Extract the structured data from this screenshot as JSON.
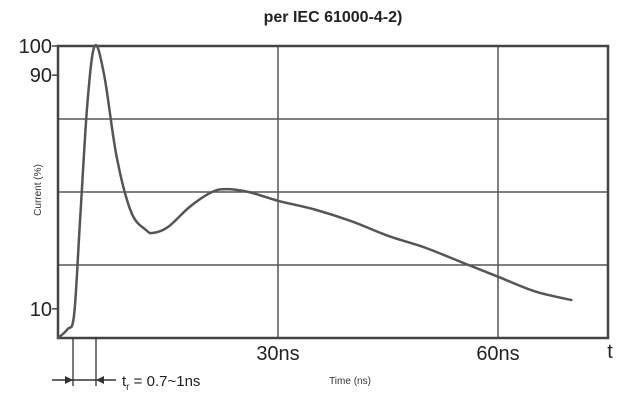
{
  "chart_data": {
    "type": "line",
    "title": "per IEC 61000-4-2)",
    "xlabel": "Time (ns)",
    "ylabel": "Current (%)",
    "x_axis_symbol": "t",
    "annotation": "t",
    "annotation_subscript": "r",
    "annotation_value": " = 0.7~1ns",
    "xlim": [
      0,
      75
    ],
    "ylim": [
      0,
      100
    ],
    "x_ticks": [
      {
        "value": 30,
        "label": "30ns"
      },
      {
        "value": 60,
        "label": "60ns"
      }
    ],
    "y_ticks": [
      {
        "value": 100,
        "label": "100"
      },
      {
        "value": 90,
        "label": "90"
      },
      {
        "value": 10,
        "label": "10"
      }
    ],
    "grid": true,
    "series": [
      {
        "color": "#555555",
        "points": [
          [
            0,
            0
          ],
          [
            1.3,
            3
          ],
          [
            2.2,
            8
          ],
          [
            3.0,
            40
          ],
          [
            4.0,
            80
          ],
          [
            5.0,
            100
          ],
          [
            6.3,
            90
          ],
          [
            8.0,
            62
          ],
          [
            10.0,
            43
          ],
          [
            12.0,
            37
          ],
          [
            13.0,
            36
          ],
          [
            15.0,
            38
          ],
          [
            18.0,
            45
          ],
          [
            21.0,
            50
          ],
          [
            23.0,
            51
          ],
          [
            26.0,
            50
          ],
          [
            30.0,
            47
          ],
          [
            35.0,
            44
          ],
          [
            40.0,
            40
          ],
          [
            45.0,
            35
          ],
          [
            50.0,
            31
          ],
          [
            55.0,
            26
          ],
          [
            60.0,
            21
          ],
          [
            65.0,
            16
          ],
          [
            70.0,
            13
          ]
        ]
      }
    ]
  },
  "colors": {
    "axis": "#444444",
    "grid": "#555555",
    "curve": "#555555"
  }
}
